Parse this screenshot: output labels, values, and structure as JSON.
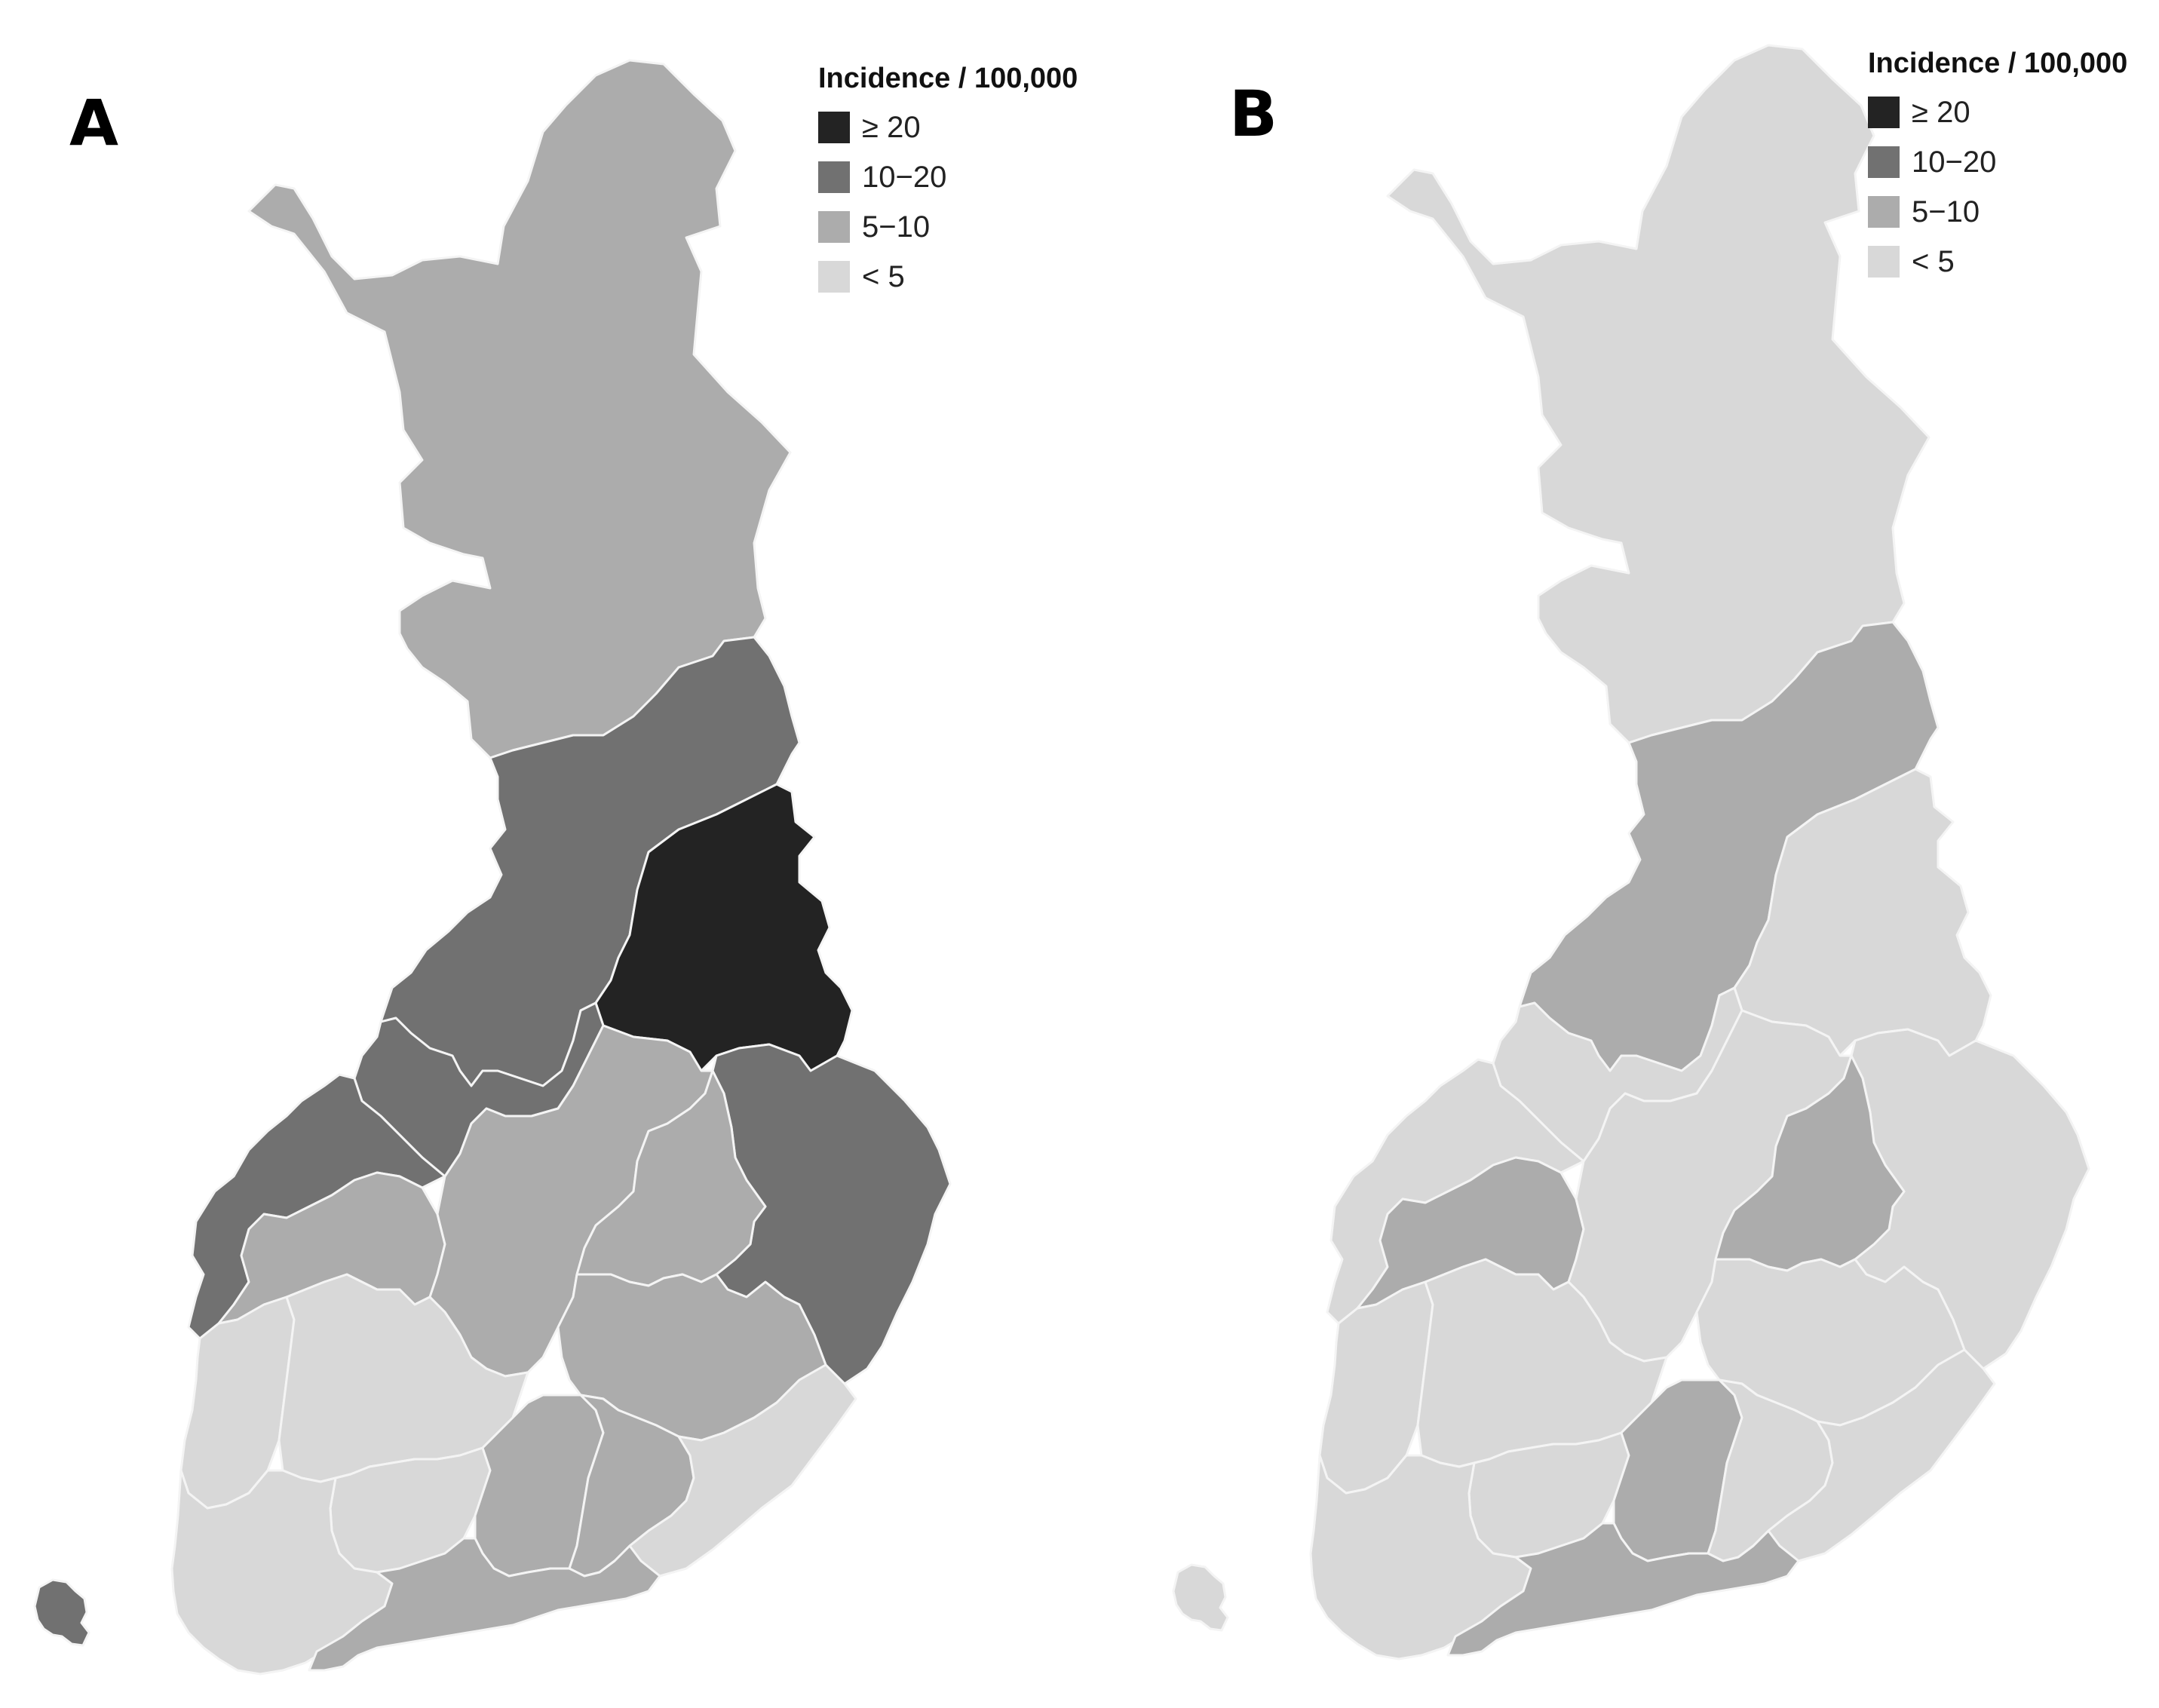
{
  "colors": {
    "ge20": "#232323",
    "10to20": "#717171",
    "5to10": "#acacac",
    "lt5": "#d8d8d8",
    "border": "#f4f4f4"
  },
  "panels": [
    {
      "letter": "A",
      "legend": {
        "title": "Incidence / 100,000",
        "items": [
          {
            "label": "≥ 20",
            "class": "ge20"
          },
          {
            "label": "10−20",
            "class": "10to20"
          },
          {
            "label": "5−10",
            "class": "5to10"
          },
          {
            "label": "< 5",
            "class": "lt5"
          }
        ]
      },
      "regions": {
        "lapland": "5to10",
        "north_ostrobothnia": "10to20",
        "kainuu": "ge20",
        "north_karelia": "10to20",
        "central_ostrobothnia": "10to20",
        "ostrobothnia": "10to20",
        "south_ostrobothnia": "5to10",
        "central_finland": "5to10",
        "north_savo": "5to10",
        "south_savo": "5to10",
        "satakunta": "lt5",
        "pirkanmaa": "lt5",
        "tavastia_proper": "lt5",
        "paijat_hame": "5to10",
        "kymenlaakso": "5to10",
        "south_karelia": "lt5",
        "southwest_finland": "lt5",
        "uusimaa": "5to10",
        "aland": "10to20"
      }
    },
    {
      "letter": "B",
      "legend": {
        "title": "Incidence / 100,000",
        "items": [
          {
            "label": "≥ 20",
            "class": "ge20"
          },
          {
            "label": "10−20",
            "class": "10to20"
          },
          {
            "label": "5−10",
            "class": "5to10"
          },
          {
            "label": "< 5",
            "class": "lt5"
          }
        ]
      },
      "regions": {
        "lapland": "lt5",
        "north_ostrobothnia": "5to10",
        "kainuu": "lt5",
        "north_karelia": "lt5",
        "central_ostrobothnia": "lt5",
        "ostrobothnia": "lt5",
        "south_ostrobothnia": "5to10",
        "central_finland": "lt5",
        "north_savo": "5to10",
        "south_savo": "lt5",
        "satakunta": "lt5",
        "pirkanmaa": "lt5",
        "tavastia_proper": "lt5",
        "paijat_hame": "5to10",
        "kymenlaakso": "lt5",
        "south_karelia": "lt5",
        "southwest_finland": "lt5",
        "uusimaa": "5to10",
        "aland": "lt5"
      }
    }
  ]
}
